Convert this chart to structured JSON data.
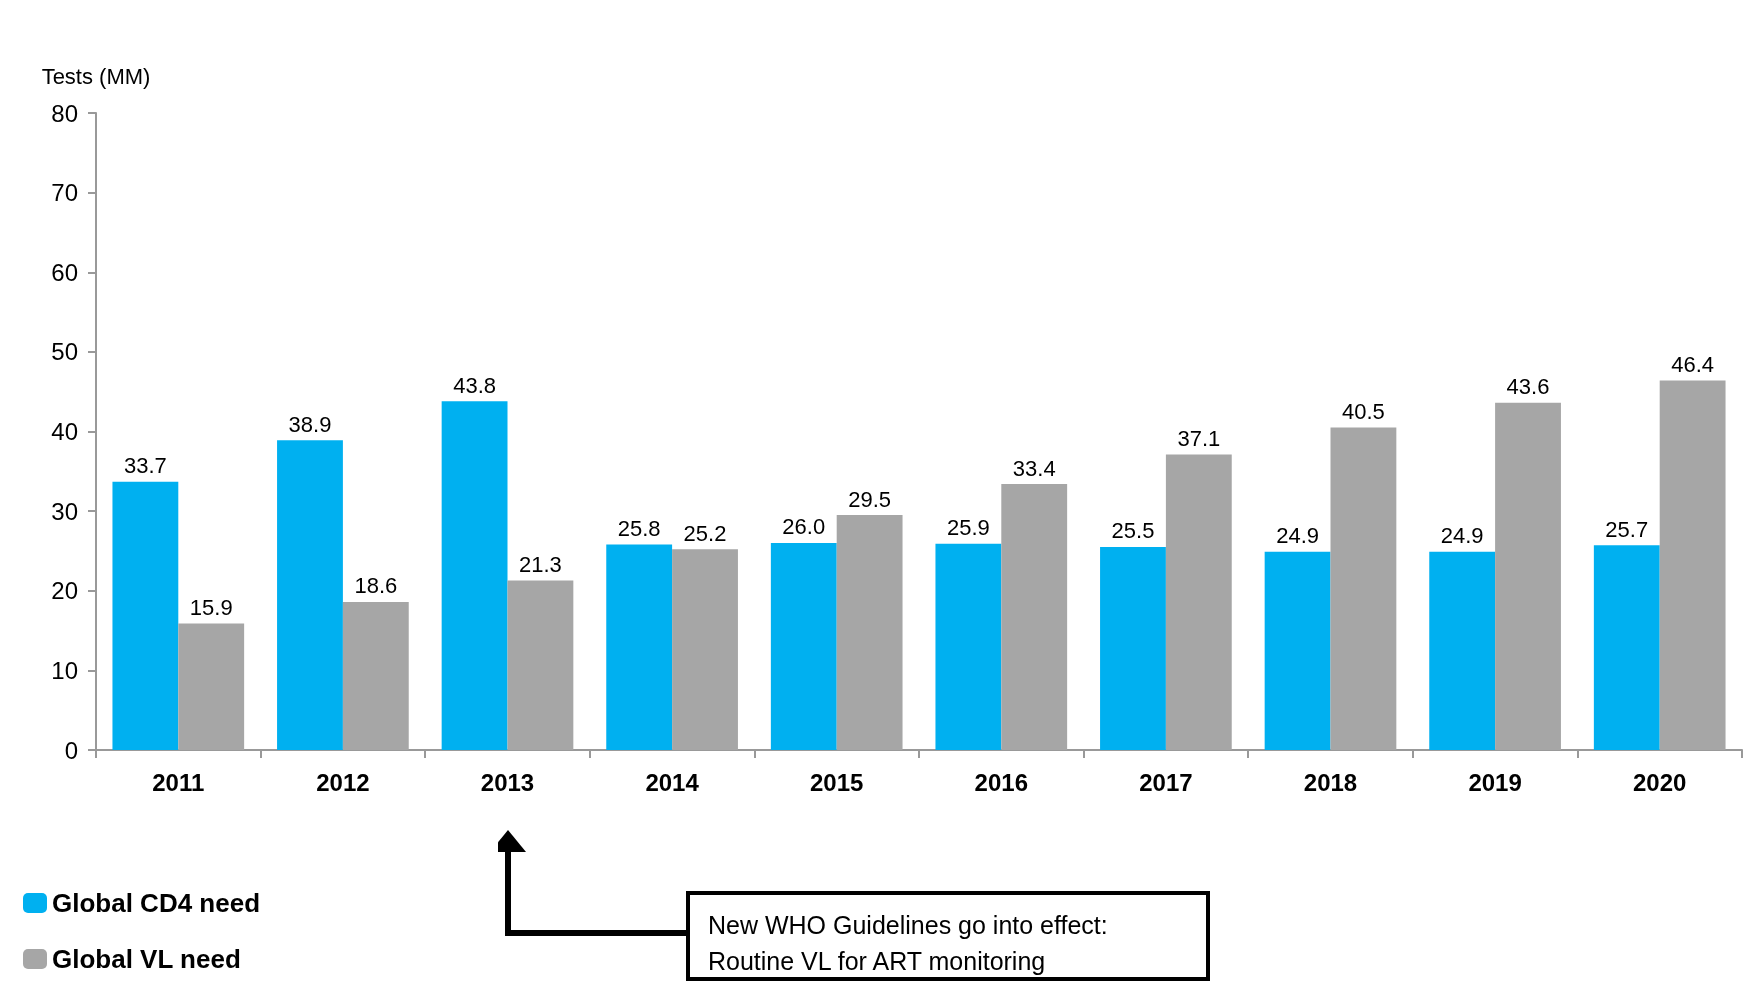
{
  "chart_data": {
    "type": "bar",
    "ylabel": "Tests (MM)",
    "categories": [
      "2011",
      "2012",
      "2013",
      "2014",
      "2015",
      "2016",
      "2017",
      "2018",
      "2019",
      "2020"
    ],
    "series": [
      {
        "name": "Global CD4 need",
        "color": "#00b0f0",
        "values": [
          33.7,
          38.9,
          43.8,
          25.8,
          26.0,
          25.9,
          25.5,
          24.9,
          24.9,
          25.7
        ],
        "value_labels": [
          "33.7",
          "38.9",
          "43.8",
          "25.8",
          "26.0",
          "25.9",
          "25.5",
          "24.9",
          "24.9",
          "25.7"
        ]
      },
      {
        "name": "Global VL need",
        "color": "#a6a6a6",
        "values": [
          15.9,
          18.6,
          21.3,
          25.2,
          29.5,
          33.4,
          37.1,
          40.5,
          43.6,
          46.4
        ],
        "value_labels": [
          "15.9",
          "18.6",
          "21.3",
          "25.2",
          "29.5",
          "33.4",
          "37.1",
          "40.5",
          "43.6",
          "46.4"
        ]
      }
    ],
    "ylim": [
      0,
      80
    ],
    "yticks": [
      0,
      10,
      20,
      30,
      40,
      50,
      60,
      70,
      80
    ],
    "grid": false,
    "legend": "bottom left",
    "annotations": [
      "New WHO Guidelines go into effect: Routine VL for ART monitoring"
    ]
  }
}
